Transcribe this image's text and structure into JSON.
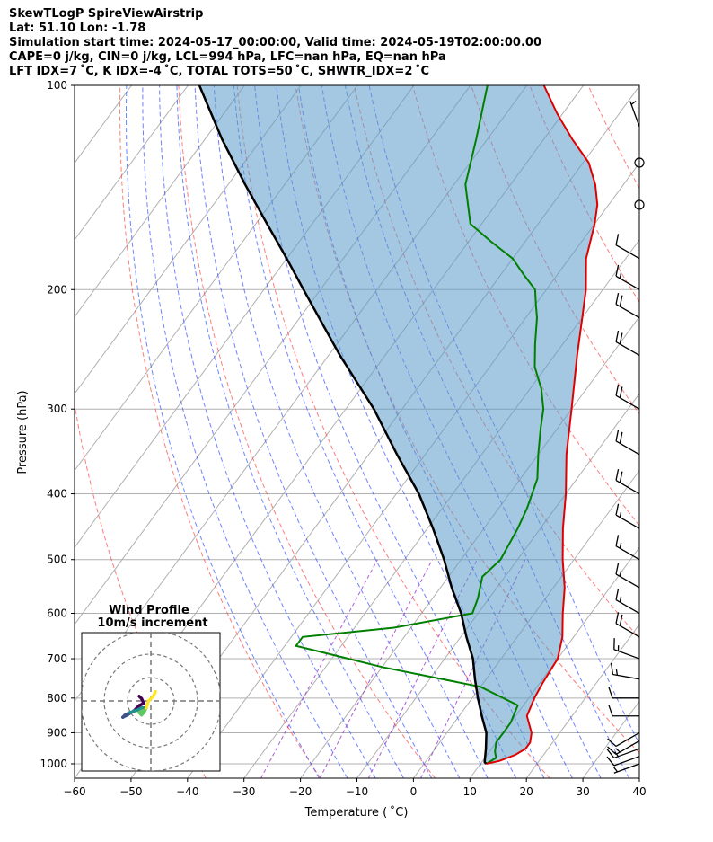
{
  "header": {
    "line1": "SkewTLogP SpireViewAirstrip",
    "line2": "Lat: 51.10   Lon: -1.78",
    "line3": "Simulation start time: 2024-05-17_00:00:00, Valid time: 2024-05-19T02:00:00.00",
    "line4": "CAPE=0 j/kg, CIN=0 j/kg, LCL=994 hPa, LFC=nan hPa, EQ=nan hPa",
    "line5": "LFT IDX=7 ˚C, K IDX=-4 ˚C, TOTAL TOTS=50 ˚C, SHWTR_IDX=2 ˚C"
  },
  "chart_data": {
    "type": "line",
    "xlabel": "Temperature ( ˚C)",
    "ylabel": "Pressure (hPa)",
    "xlim": [
      -60,
      40
    ],
    "ylim": [
      1050,
      100
    ],
    "y_scale": "log",
    "skew": true,
    "grid": true,
    "x_ticks": [
      -60,
      -50,
      -40,
      -30,
      -20,
      -10,
      0,
      10,
      20,
      30,
      40
    ],
    "y_ticks": [
      1000,
      900,
      800,
      700,
      600,
      500,
      400,
      300,
      200,
      100
    ],
    "colors": {
      "temperature": "#e00000",
      "dewpoint": "#008000",
      "parcel": "#000000",
      "cin_fill": "#5a9bc8",
      "dry_adiabat": "#ff4444",
      "moist_adiabat": "#3050ff",
      "mixing_ratio": "#9933cc",
      "isotherm": "#888888"
    },
    "series": [
      {
        "name": "",
        "role": "temperature",
        "points": [
          [
            11,
            1000
          ],
          [
            13,
            990
          ],
          [
            15,
            970
          ],
          [
            16,
            950
          ],
          [
            16,
            930
          ],
          [
            15,
            900
          ],
          [
            12,
            850
          ],
          [
            11,
            800
          ],
          [
            10.5,
            760
          ],
          [
            10,
            700
          ],
          [
            8,
            650
          ],
          [
            5,
            600
          ],
          [
            2,
            550
          ],
          [
            -2,
            500
          ],
          [
            -6,
            450
          ],
          [
            -10,
            400
          ],
          [
            -15,
            350
          ],
          [
            -20,
            300
          ],
          [
            -26,
            250
          ],
          [
            -30,
            220
          ],
          [
            -33,
            200
          ],
          [
            -37,
            180
          ],
          [
            -40,
            160
          ],
          [
            -42,
            150
          ],
          [
            -45,
            140
          ],
          [
            -49,
            130
          ],
          [
            -55,
            120
          ],
          [
            -61,
            110
          ],
          [
            -67,
            100
          ]
        ]
      },
      {
        "name": "",
        "role": "dewpoint",
        "points": [
          [
            11,
            1000
          ],
          [
            12,
            980
          ],
          [
            11,
            960
          ],
          [
            10,
            930
          ],
          [
            10,
            900
          ],
          [
            10,
            870
          ],
          [
            9,
            820
          ],
          [
            0,
            770
          ],
          [
            -20,
            720
          ],
          [
            -38,
            670
          ],
          [
            -38,
            650
          ],
          [
            -23,
            630
          ],
          [
            -11,
            600
          ],
          [
            -12,
            570
          ],
          [
            -14,
            530
          ],
          [
            -13,
            500
          ],
          [
            -14,
            450
          ],
          [
            -15,
            420
          ],
          [
            -17,
            380
          ],
          [
            -20,
            350
          ],
          [
            -23,
            320
          ],
          [
            -25,
            300
          ],
          [
            -28,
            280
          ],
          [
            -32,
            260
          ],
          [
            -35,
            240
          ],
          [
            -38,
            220
          ],
          [
            -40,
            210
          ],
          [
            -42,
            200
          ],
          [
            -46,
            190
          ],
          [
            -50,
            180
          ],
          [
            -56,
            170
          ],
          [
            -62,
            160
          ],
          [
            -68,
            140
          ],
          [
            -72,
            120
          ],
          [
            -77,
            100
          ]
        ]
      },
      {
        "name": "",
        "role": "parcel",
        "points": [
          [
            11,
            1000
          ],
          [
            10.5,
            994
          ],
          [
            9,
            950
          ],
          [
            7,
            900
          ],
          [
            4,
            850
          ],
          [
            1,
            800
          ],
          [
            -2,
            750
          ],
          [
            -5,
            700
          ],
          [
            -9,
            650
          ],
          [
            -13,
            600
          ],
          [
            -18,
            550
          ],
          [
            -23,
            500
          ],
          [
            -29,
            450
          ],
          [
            -36,
            400
          ],
          [
            -45,
            350
          ],
          [
            -55,
            300
          ],
          [
            -68,
            250
          ],
          [
            -83,
            200
          ],
          [
            -90,
            180
          ],
          [
            -98,
            160
          ],
          [
            -107,
            140
          ],
          [
            -117,
            120
          ],
          [
            -128,
            100
          ]
        ]
      }
    ],
    "wind_barbs": [
      {
        "p": 1000,
        "spd": 5,
        "dir": 250
      },
      {
        "p": 975,
        "spd": 10,
        "dir": 250
      },
      {
        "p": 950,
        "spd": 15,
        "dir": 250
      },
      {
        "p": 925,
        "spd": 15,
        "dir": 240
      },
      {
        "p": 900,
        "spd": 10,
        "dir": 240
      },
      {
        "p": 850,
        "spd": 10,
        "dir": 270
      },
      {
        "p": 800,
        "spd": 10,
        "dir": 270
      },
      {
        "p": 750,
        "spd": 15,
        "dir": 280
      },
      {
        "p": 700,
        "spd": 15,
        "dir": 290
      },
      {
        "p": 650,
        "spd": 20,
        "dir": 300
      },
      {
        "p": 600,
        "spd": 15,
        "dir": 300
      },
      {
        "p": 550,
        "spd": 15,
        "dir": 300
      },
      {
        "p": 500,
        "spd": 15,
        "dir": 300
      },
      {
        "p": 450,
        "spd": 15,
        "dir": 300
      },
      {
        "p": 400,
        "spd": 20,
        "dir": 300
      },
      {
        "p": 350,
        "spd": 20,
        "dir": 300
      },
      {
        "p": 300,
        "spd": 20,
        "dir": 300
      },
      {
        "p": 250,
        "spd": 20,
        "dir": 300
      },
      {
        "p": 220,
        "spd": 20,
        "dir": 300
      },
      {
        "p": 200,
        "spd": 15,
        "dir": 300
      },
      {
        "p": 180,
        "spd": 10,
        "dir": 300
      },
      {
        "p": 150,
        "spd": 0,
        "dir": 0
      },
      {
        "p": 130,
        "spd": 0,
        "dir": 0
      },
      {
        "p": 115,
        "spd": 5,
        "dir": 340
      }
    ],
    "wind_profile": {
      "title": "Wind Profile",
      "subtitle": "10m/s increment",
      "rings_ms": [
        10,
        20,
        30
      ],
      "hodograph_uv": [
        [
          2,
          4
        ],
        [
          1,
          2
        ],
        [
          -1,
          0
        ],
        [
          -2,
          -3
        ],
        [
          -3,
          -5
        ],
        [
          -4,
          -6
        ],
        [
          -5,
          -5
        ],
        [
          -3,
          -4
        ],
        [
          -2,
          -3
        ],
        [
          -4,
          -3
        ],
        [
          -6,
          -4
        ],
        [
          -9,
          -5
        ],
        [
          -11,
          -6
        ],
        [
          -12,
          -7
        ],
        [
          -10,
          -6
        ],
        [
          -7,
          -4
        ],
        [
          -5,
          -2
        ],
        [
          -3,
          -1
        ],
        [
          -4,
          1
        ],
        [
          -5,
          2
        ]
      ]
    }
  }
}
